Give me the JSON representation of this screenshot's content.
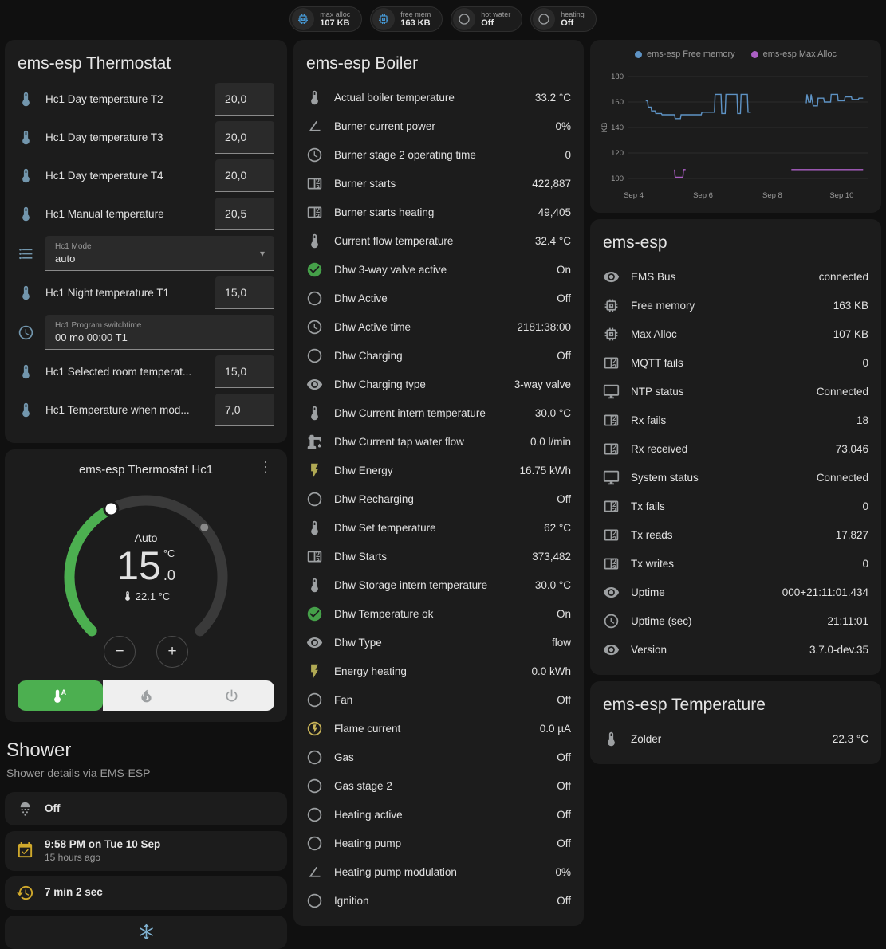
{
  "badges": [
    {
      "icon": "memory",
      "icon_color": "#4596d1",
      "label": "max alloc",
      "value": "107 KB"
    },
    {
      "icon": "memory",
      "icon_color": "#4596d1",
      "label": "free mem",
      "value": "163 KB"
    },
    {
      "icon": "circle-outline",
      "icon_color": "#9da0a2",
      "label": "hot water",
      "value": "Off"
    },
    {
      "icon": "circle-outline",
      "icon_color": "#9da0a2",
      "label": "heating",
      "value": "Off"
    }
  ],
  "thermostat_card": {
    "title": "ems-esp Thermostat",
    "rows": [
      {
        "type": "number",
        "icon": "thermometer",
        "icon_color": "#7296ad",
        "label": "Hc1 Day temperature T2",
        "value": "20,0"
      },
      {
        "type": "number",
        "icon": "thermometer",
        "icon_color": "#7296ad",
        "label": "Hc1 Day temperature T3",
        "value": "20,0"
      },
      {
        "type": "number",
        "icon": "thermometer",
        "icon_color": "#7296ad",
        "label": "Hc1 Day temperature T4",
        "value": "20,0"
      },
      {
        "type": "number",
        "icon": "thermometer",
        "icon_color": "#7296ad",
        "label": "Hc1 Manual temperature",
        "value": "20,5"
      },
      {
        "type": "select",
        "icon": "list",
        "icon_color": "#7296ad",
        "sublabel": "Hc1 Mode",
        "value": "auto"
      },
      {
        "type": "number",
        "icon": "thermometer",
        "icon_color": "#7296ad",
        "label": "Hc1 Night temperature T1",
        "value": "15,0"
      },
      {
        "type": "time",
        "icon": "clock",
        "icon_color": "#7296ad",
        "sublabel": "Hc1 Program switchtime",
        "value": "00 mo 00:00 T1"
      },
      {
        "type": "number",
        "icon": "thermometer",
        "icon_color": "#7296ad",
        "label": "Hc1 Selected room temperat...",
        "value": "15,0"
      },
      {
        "type": "number",
        "icon": "thermometer",
        "icon_color": "#7296ad",
        "label": "Hc1 Temperature when mod...",
        "value": "7,0"
      }
    ]
  },
  "hc1": {
    "title": "ems-esp Thermostat Hc1",
    "menu_icon": "⋮",
    "mode_label": "Auto",
    "target_int": "15",
    "target_dec": ".0",
    "unit": "°C",
    "current_label": "22.1 °C",
    "minus": "−",
    "plus": "+",
    "dial": {
      "min": 5,
      "max": 30,
      "target": 15.0,
      "current": 22.1,
      "active_color": "#4caf50",
      "track_color": "#3a3a3a"
    },
    "modes": [
      {
        "icon": "thermostat-auto",
        "name": "auto",
        "active": true
      },
      {
        "icon": "fire",
        "name": "heat",
        "active": false
      },
      {
        "icon": "power",
        "name": "off",
        "active": false
      }
    ]
  },
  "shower": {
    "title": "Shower",
    "subtitle": "Shower details via EMS-ESP",
    "tiles": [
      {
        "icon": "shower",
        "icon_color": "#9da0a2",
        "title": "Off",
        "subtitle": ""
      },
      {
        "icon": "calendar",
        "icon_color": "#d0a92c",
        "title": "9:58 PM on Tue 10 Sep",
        "subtitle": "15 hours ago"
      },
      {
        "icon": "history",
        "icon_color": "#d0a92c",
        "title": "7 min 2 sec",
        "subtitle": ""
      },
      {
        "icon": "snowflake",
        "icon_color": "#7fb1d0",
        "title": "",
        "subtitle": ""
      }
    ]
  },
  "boiler_card": {
    "title": "ems-esp Boiler",
    "rows": [
      {
        "icon": "thermometer",
        "icon_color": "#9da0a2",
        "label": "Actual boiler temperature",
        "value": "33.2 °C"
      },
      {
        "icon": "angle",
        "icon_color": "#9da0a2",
        "label": "Burner current power",
        "value": "0%"
      },
      {
        "icon": "clock",
        "icon_color": "#9da0a2",
        "label": "Burner stage 2 operating time",
        "value": "0"
      },
      {
        "icon": "counter",
        "icon_color": "#9da0a2",
        "label": "Burner starts",
        "value": "422,887"
      },
      {
        "icon": "counter",
        "icon_color": "#9da0a2",
        "label": "Burner starts heating",
        "value": "49,405"
      },
      {
        "icon": "thermometer",
        "icon_color": "#9da0a2",
        "label": "Current flow temperature",
        "value": "32.4 °C"
      },
      {
        "icon": "check-circle",
        "icon_color": "#45a049",
        "label": "Dhw 3-way valve active",
        "value": "On"
      },
      {
        "icon": "circle-outline",
        "icon_color": "#9da0a2",
        "label": "Dhw Active",
        "value": "Off"
      },
      {
        "icon": "clock",
        "icon_color": "#9da0a2",
        "label": "Dhw Active time",
        "value": "2181:38:00"
      },
      {
        "icon": "circle-outline",
        "icon_color": "#9da0a2",
        "label": "Dhw Charging",
        "value": "Off"
      },
      {
        "icon": "eye",
        "icon_color": "#9da0a2",
        "label": "Dhw Charging type",
        "value": "3-way valve"
      },
      {
        "icon": "thermometer",
        "icon_color": "#9da0a2",
        "label": "Dhw Current intern temperature",
        "value": "30.0 °C"
      },
      {
        "icon": "water-pump",
        "icon_color": "#9da0a2",
        "label": "Dhw Current tap water flow",
        "value": "0.0 l/min"
      },
      {
        "icon": "flash",
        "icon_color": "#b0a954",
        "label": "Dhw Energy",
        "value": "16.75 kWh"
      },
      {
        "icon": "circle-outline",
        "icon_color": "#9da0a2",
        "label": "Dhw Recharging",
        "value": "Off"
      },
      {
        "icon": "thermometer",
        "icon_color": "#9da0a2",
        "label": "Dhw Set temperature",
        "value": "62 °C"
      },
      {
        "icon": "counter",
        "icon_color": "#9da0a2",
        "label": "Dhw Starts",
        "value": "373,482"
      },
      {
        "icon": "thermometer",
        "icon_color": "#9da0a2",
        "label": "Dhw Storage intern temperature",
        "value": "30.0 °C"
      },
      {
        "icon": "check-circle",
        "icon_color": "#45a049",
        "label": "Dhw Temperature ok",
        "value": "On"
      },
      {
        "icon": "eye",
        "icon_color": "#9da0a2",
        "label": "Dhw Type",
        "value": "flow"
      },
      {
        "icon": "flash",
        "icon_color": "#b0a954",
        "label": "Energy heating",
        "value": "0.0 kWh"
      },
      {
        "icon": "circle-outline",
        "icon_color": "#9da0a2",
        "label": "Fan",
        "value": "Off"
      },
      {
        "icon": "flash-circle",
        "icon_color": "#c9b458",
        "label": "Flame current",
        "value": "0.0 µA"
      },
      {
        "icon": "circle-outline",
        "icon_color": "#9da0a2",
        "label": "Gas",
        "value": "Off"
      },
      {
        "icon": "circle-outline",
        "icon_color": "#9da0a2",
        "label": "Gas stage 2",
        "value": "Off"
      },
      {
        "icon": "circle-outline",
        "icon_color": "#9da0a2",
        "label": "Heating active",
        "value": "Off"
      },
      {
        "icon": "circle-outline",
        "icon_color": "#9da0a2",
        "label": "Heating pump",
        "value": "Off"
      },
      {
        "icon": "angle",
        "icon_color": "#9da0a2",
        "label": "Heating pump modulation",
        "value": "0%"
      },
      {
        "icon": "circle-outline",
        "icon_color": "#9da0a2",
        "label": "Ignition",
        "value": "Off"
      }
    ]
  },
  "emsesp_card": {
    "title": "ems-esp",
    "rows": [
      {
        "icon": "eye",
        "icon_color": "#9da0a2",
        "label": "EMS Bus",
        "value": "connected"
      },
      {
        "icon": "memory",
        "icon_color": "#9da0a2",
        "label": "Free memory",
        "value": "163 KB"
      },
      {
        "icon": "memory",
        "icon_color": "#9da0a2",
        "label": "Max Alloc",
        "value": "107 KB"
      },
      {
        "icon": "counter",
        "icon_color": "#9da0a2",
        "label": "MQTT fails",
        "value": "0"
      },
      {
        "icon": "monitor",
        "icon_color": "#9da0a2",
        "label": "NTP status",
        "value": "Connected"
      },
      {
        "icon": "counter",
        "icon_color": "#9da0a2",
        "label": "Rx fails",
        "value": "18"
      },
      {
        "icon": "counter",
        "icon_color": "#9da0a2",
        "label": "Rx received",
        "value": "73,046"
      },
      {
        "icon": "monitor",
        "icon_color": "#9da0a2",
        "label": "System status",
        "value": "Connected"
      },
      {
        "icon": "counter",
        "icon_color": "#9da0a2",
        "label": "Tx fails",
        "value": "0"
      },
      {
        "icon": "counter",
        "icon_color": "#9da0a2",
        "label": "Tx reads",
        "value": "17,827"
      },
      {
        "icon": "counter",
        "icon_color": "#9da0a2",
        "label": "Tx writes",
        "value": "0"
      },
      {
        "icon": "eye",
        "icon_color": "#9da0a2",
        "label": "Uptime",
        "value": "000+21:11:01.434"
      },
      {
        "icon": "clock",
        "icon_color": "#9da0a2",
        "label": "Uptime (sec)",
        "value": "21:11:01"
      },
      {
        "icon": "eye",
        "icon_color": "#9da0a2",
        "label": "Version",
        "value": "3.7.0-dev.35"
      }
    ]
  },
  "temperature_card": {
    "title": "ems-esp Temperature",
    "rows": [
      {
        "icon": "thermometer",
        "icon_color": "#9da0a2",
        "label": "Zolder",
        "value": "22.3 °C"
      }
    ]
  },
  "chart_data": {
    "type": "line",
    "title": "",
    "ylabel": "KB",
    "ylim": [
      95,
      185
    ],
    "yticks": [
      100,
      120,
      140,
      160,
      180
    ],
    "xlim": [
      3.85,
      10.75
    ],
    "xticks": [
      {
        "x": 4,
        "label": "Sep 4"
      },
      {
        "x": 6,
        "label": "Sep 6"
      },
      {
        "x": 8,
        "label": "Sep 8"
      },
      {
        "x": 10,
        "label": "Sep 10"
      }
    ],
    "grid": true,
    "legend_position": "top",
    "series": [
      {
        "name": "ems-esp Free memory",
        "color": "#5e93c5",
        "points": [
          [
            4.35,
            161
          ],
          [
            4.4,
            161
          ],
          [
            4.42,
            156
          ],
          [
            4.5,
            156
          ],
          [
            4.52,
            153
          ],
          [
            4.62,
            153
          ],
          [
            4.64,
            151
          ],
          [
            4.8,
            151
          ],
          [
            4.82,
            150
          ],
          [
            5.18,
            150
          ],
          [
            5.2,
            147
          ],
          [
            5.35,
            147
          ],
          [
            5.37,
            150
          ],
          [
            5.95,
            150
          ],
          [
            5.97,
            152
          ],
          [
            6.33,
            152
          ],
          [
            6.35,
            166
          ],
          [
            6.52,
            166
          ],
          [
            6.54,
            151
          ],
          [
            6.64,
            151
          ],
          [
            6.66,
            166
          ],
          [
            6.98,
            166
          ],
          [
            7.0,
            151
          ],
          [
            7.08,
            151
          ],
          [
            7.1,
            166
          ],
          [
            7.28,
            166
          ],
          [
            7.3,
            152
          ],
          [
            7.38,
            152
          ],
          null,
          [
            8.98,
            159
          ],
          [
            9.0,
            166
          ],
          [
            9.05,
            160
          ],
          [
            9.1,
            160
          ],
          [
            9.12,
            166
          ],
          [
            9.18,
            157
          ],
          [
            9.3,
            157
          ],
          [
            9.32,
            163
          ],
          [
            9.48,
            163
          ],
          [
            9.5,
            160
          ],
          [
            9.68,
            160
          ],
          [
            9.7,
            166
          ],
          [
            9.88,
            166
          ],
          [
            9.9,
            161
          ],
          [
            10.08,
            161
          ],
          [
            10.1,
            164
          ],
          [
            10.28,
            164
          ],
          [
            10.3,
            162
          ],
          [
            10.48,
            162
          ],
          [
            10.5,
            163
          ],
          [
            10.62,
            163
          ]
        ]
      },
      {
        "name": "ems-esp Max Alloc",
        "color": "#ab5fc4",
        "points": [
          [
            5.18,
            107
          ],
          [
            5.2,
            101
          ],
          [
            5.42,
            101
          ],
          [
            5.44,
            107
          ],
          [
            5.5,
            107
          ],
          null,
          [
            8.55,
            107
          ],
          [
            10.62,
            107
          ]
        ]
      }
    ]
  }
}
